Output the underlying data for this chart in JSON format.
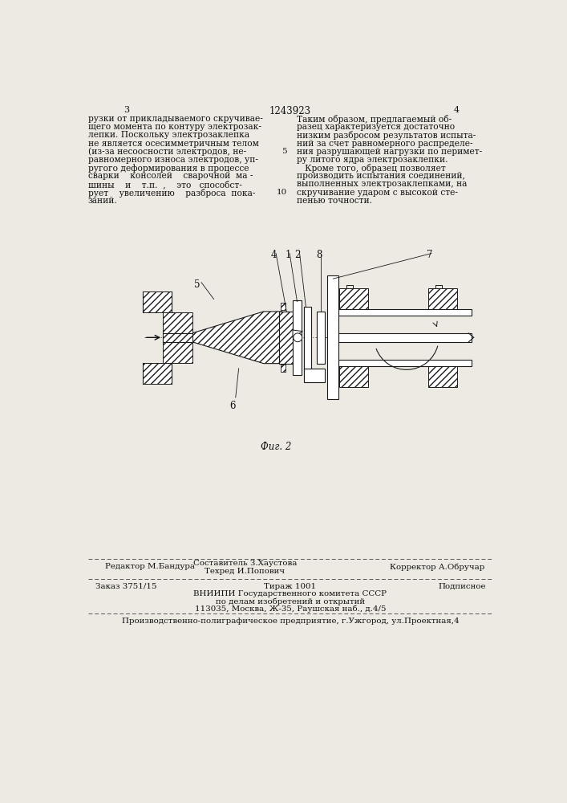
{
  "bg_color": "#ede9e3",
  "page_number_left": "3",
  "page_number_center": "1243923",
  "page_number_right": "4",
  "left_text": [
    "рузки от прикладываемого скручивае-",
    "щего момента по контуру электрозак-",
    "лепки. Поскольку электрозаклепка",
    "не является осесимметричным телом",
    "(из-за несоосности электродов, не-",
    "равномерного износа электродов, уп-",
    "ругого деформирования в процессе",
    "сварки    консолей    сварочной  ма -",
    "шины    и    т.п.  ,    это   способст-",
    "рует    увеличению    разброса  пока-",
    "заний."
  ],
  "right_text": [
    "Таким образом, предлагаемый об-",
    "разец характеризуется достаточно",
    "низким разбросом результатов испыта-",
    "ний за счет равномерного распределе-",
    "ния разрушающей нагрузки по перимет-",
    "ру литого ядра электрозаклепки.",
    "   Кроме того, образец позволяет",
    "производить испытания соединений,",
    "выполненных электрозаклепками, на",
    "скручивание ударом с высокой сте-",
    "пенью точности."
  ],
  "line_number_5": "5",
  "line_number_10": "10",
  "fig_caption": "Фиг. 2",
  "footer_line1_left": "Редактор М.Бандура",
  "footer_line1_center1": "Составитель З.Хаустова",
  "footer_line1_center2": "Техред И.Попович",
  "footer_line1_right": "Корректор А.Обручар",
  "footer_line2_left": "Заказ 3751/15",
  "footer_line2_center": "Тираж 1001",
  "footer_line2_right": "Подписное",
  "footer_line3": "ВНИИПИ Государственного комитета СССР",
  "footer_line4": "по делам изобретений и открытий",
  "footer_line5": "113035, Москва, Ж-35, Раушская наб., д.4/5",
  "footer_line6": "Производственно-полиграфическое предприятие, г.Ужгород, ул.Проектная,4"
}
